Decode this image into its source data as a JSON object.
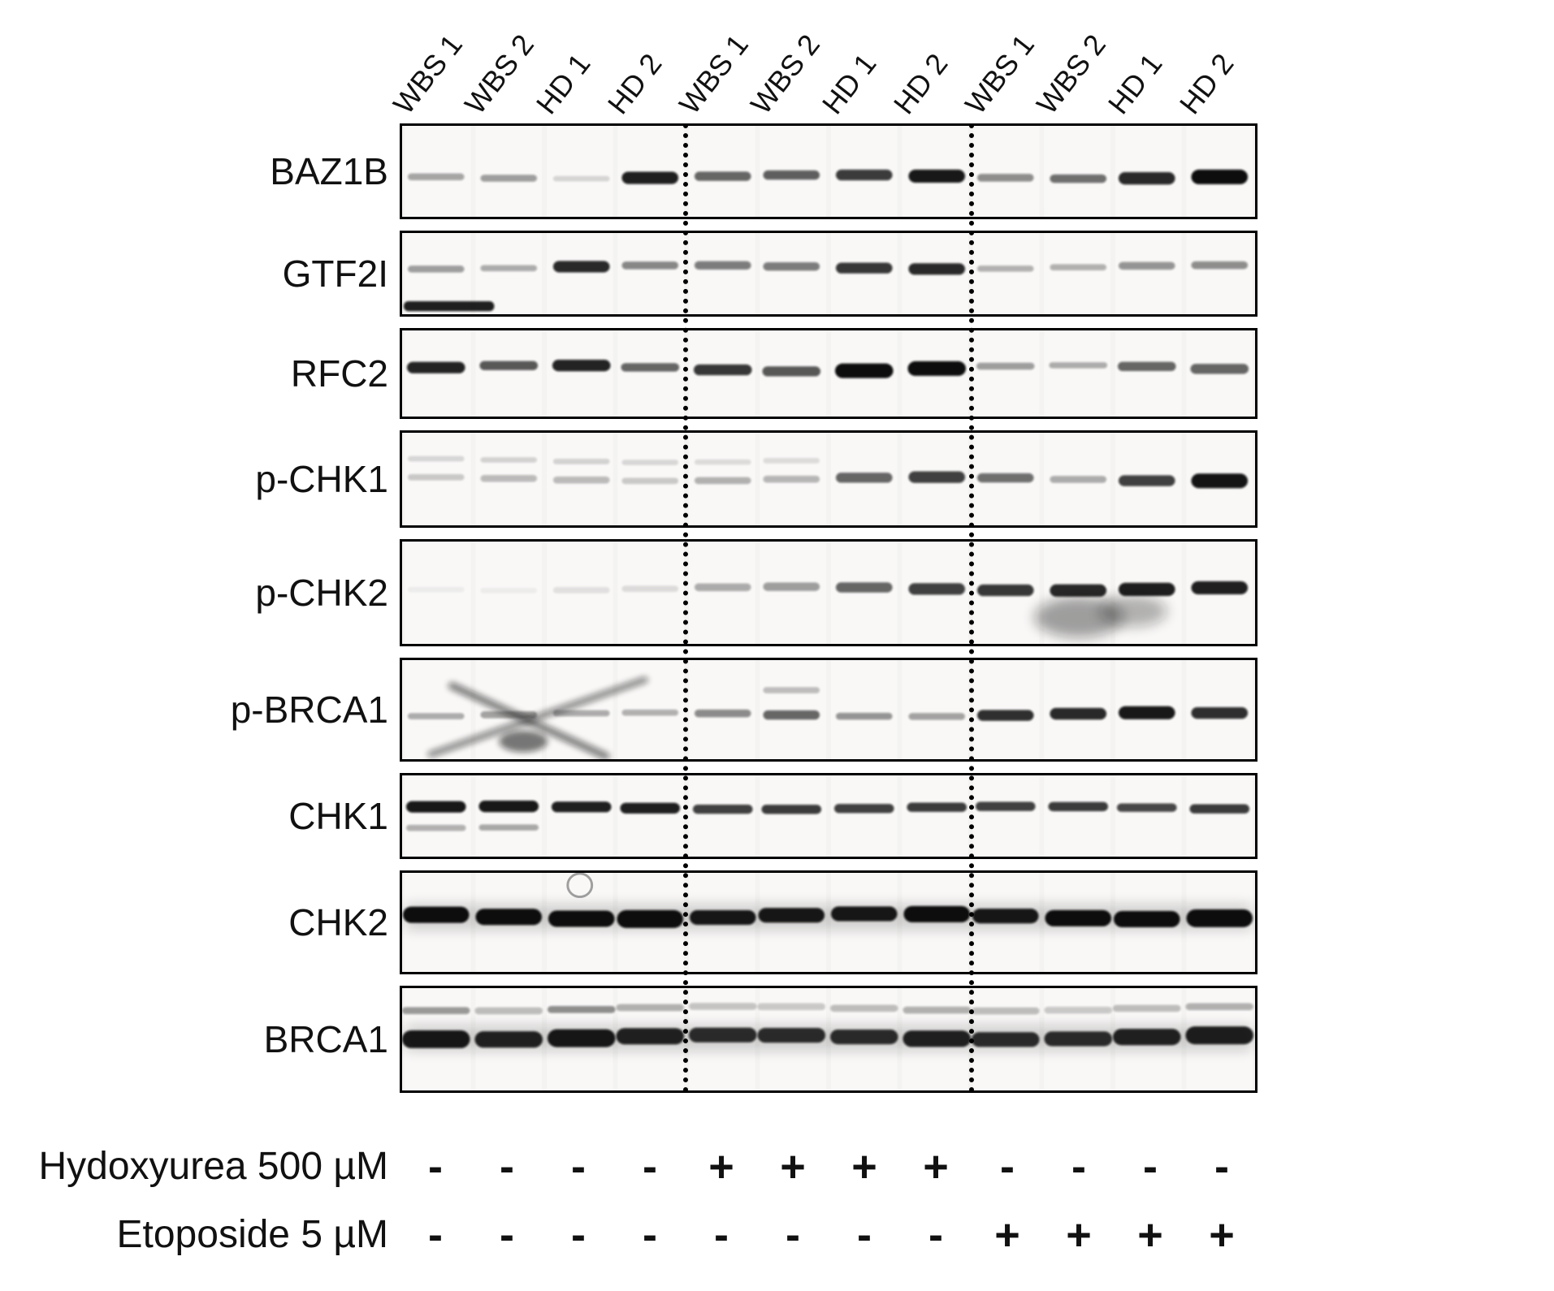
{
  "lanes": [
    "WBS 1",
    "WBS 2",
    "HD 1",
    "HD 2",
    "WBS 1",
    "WBS 2",
    "HD 1",
    "HD 2",
    "WBS 1",
    "WBS 2",
    "HD 1",
    "HD 2"
  ],
  "panels": [
    {
      "protein": "BAZ1B",
      "band_row": {
        "y": 0.56,
        "intensities": [
          0.35,
          0.38,
          0.15,
          0.92,
          0.62,
          0.65,
          0.8,
          0.95,
          0.45,
          0.58,
          0.88,
          1
        ],
        "thickness": [
          9,
          9,
          7,
          16,
          12,
          12,
          14,
          17,
          10,
          11,
          16,
          19
        ]
      }
    },
    {
      "protein": "GTF2I",
      "band_row": {
        "y": 0.42,
        "intensities": [
          0.38,
          0.32,
          0.88,
          0.48,
          0.52,
          0.52,
          0.82,
          0.88,
          0.3,
          0.3,
          0.42,
          0.45
        ],
        "thickness": [
          9,
          8,
          15,
          10,
          11,
          11,
          14,
          15,
          8,
          8,
          10,
          10
        ]
      },
      "features": [
        "corner-streak"
      ]
    },
    {
      "protein": "RFC2",
      "band_row": {
        "y": 0.44,
        "intensities": [
          0.9,
          0.68,
          0.9,
          0.62,
          0.82,
          0.68,
          1,
          1,
          0.38,
          0.32,
          0.62,
          0.62
        ],
        "thickness": [
          15,
          12,
          15,
          11,
          14,
          13,
          19,
          19,
          9,
          8,
          12,
          13
        ]
      }
    },
    {
      "protein": "p-CHK1",
      "band_row": {
        "y": 0.5,
        "intensities": [
          0.2,
          0.26,
          0.26,
          0.2,
          0.3,
          0.28,
          0.62,
          0.78,
          0.58,
          0.32,
          0.78,
          0.97
        ],
        "thickness": [
          8,
          9,
          9,
          8,
          9,
          9,
          13,
          15,
          12,
          9,
          14,
          19
        ]
      },
      "band_row2": {
        "y": 0.3,
        "th": 7,
        "intensities": [
          0.14,
          0.16,
          0.16,
          0.14,
          0.12,
          0.12,
          0,
          0,
          0,
          0,
          0,
          0
        ]
      }
    },
    {
      "protein": "p-CHK2",
      "band_row": {
        "y": 0.46,
        "intensities": [
          0.05,
          0.05,
          0.1,
          0.12,
          0.32,
          0.38,
          0.62,
          0.78,
          0.82,
          0.88,
          0.92,
          0.92
        ],
        "thickness": [
          7,
          7,
          8,
          8,
          10,
          11,
          13,
          15,
          15,
          16,
          17,
          17
        ]
      },
      "features": [
        "smear-below"
      ]
    },
    {
      "protein": "p-BRCA1",
      "band_row": {
        "y": 0.55,
        "intensities": [
          0.32,
          0.36,
          0.32,
          0.3,
          0.46,
          0.62,
          0.42,
          0.36,
          0.85,
          0.88,
          0.95,
          0.85
        ],
        "thickness": [
          8,
          9,
          8,
          8,
          10,
          12,
          9,
          9,
          14,
          15,
          17,
          15
        ]
      },
      "band_row2": {
        "y": 0.3,
        "th": 8,
        "intensities": [
          0,
          0,
          0,
          0,
          0,
          0.25,
          0,
          0,
          0,
          0,
          0,
          0
        ]
      },
      "features": [
        "x-cross"
      ]
    },
    {
      "protein": "CHK1",
      "band_row": {
        "y": 0.4,
        "intensities": [
          0.95,
          0.95,
          0.92,
          0.92,
          0.78,
          0.8,
          0.78,
          0.8,
          0.78,
          0.8,
          0.75,
          0.8
        ],
        "thickness": [
          15,
          15,
          14,
          14,
          12,
          12,
          12,
          12,
          12,
          12,
          11,
          12
        ]
      },
      "band_row2": {
        "y": 0.66,
        "th": 8,
        "intensities": [
          0.3,
          0.34,
          0,
          0,
          0,
          0,
          0,
          0,
          0,
          0,
          0,
          0
        ]
      }
    },
    {
      "protein": "CHK2",
      "band_row": {
        "y": 0.44,
        "intensities": [
          1,
          1,
          1,
          1,
          0.95,
          0.95,
          0.95,
          1,
          0.95,
          1,
          1,
          1
        ],
        "thickness": [
          21,
          21,
          21,
          23,
          19,
          19,
          19,
          21,
          19,
          21,
          21,
          23
        ]
      },
      "features": [
        "ring",
        "continuous-smear"
      ]
    },
    {
      "protein": "BRCA1",
      "band_row": {
        "y": 0.48,
        "intensities": [
          0.95,
          0.9,
          0.95,
          0.9,
          0.85,
          0.85,
          0.85,
          0.9,
          0.85,
          0.85,
          0.9,
          0.92
        ],
        "thickness": [
          23,
          21,
          23,
          21,
          19,
          19,
          19,
          21,
          19,
          19,
          21,
          23
        ]
      },
      "band_row2": {
        "y": 0.2,
        "th": 9,
        "intensities": [
          0.4,
          0.25,
          0.45,
          0.3,
          0.22,
          0.2,
          0.25,
          0.3,
          0.25,
          0.2,
          0.25,
          0.3
        ]
      },
      "features": [
        "continuous-smear"
      ]
    }
  ],
  "treatments": [
    {
      "label": "Hydoxyurea 500 µM",
      "values": [
        "-",
        "-",
        "-",
        "-",
        "+",
        "+",
        "+",
        "+",
        "-",
        "-",
        "-",
        "-"
      ]
    },
    {
      "label": "Etoposide 5 µM",
      "values": [
        "-",
        "-",
        "-",
        "-",
        "-",
        "-",
        "-",
        "-",
        "+",
        "+",
        "+",
        "+"
      ]
    }
  ],
  "colors": {
    "band": "#0b0b0b",
    "panel_background": "#f4f3f1",
    "border": "#000000",
    "text": "#111111"
  }
}
